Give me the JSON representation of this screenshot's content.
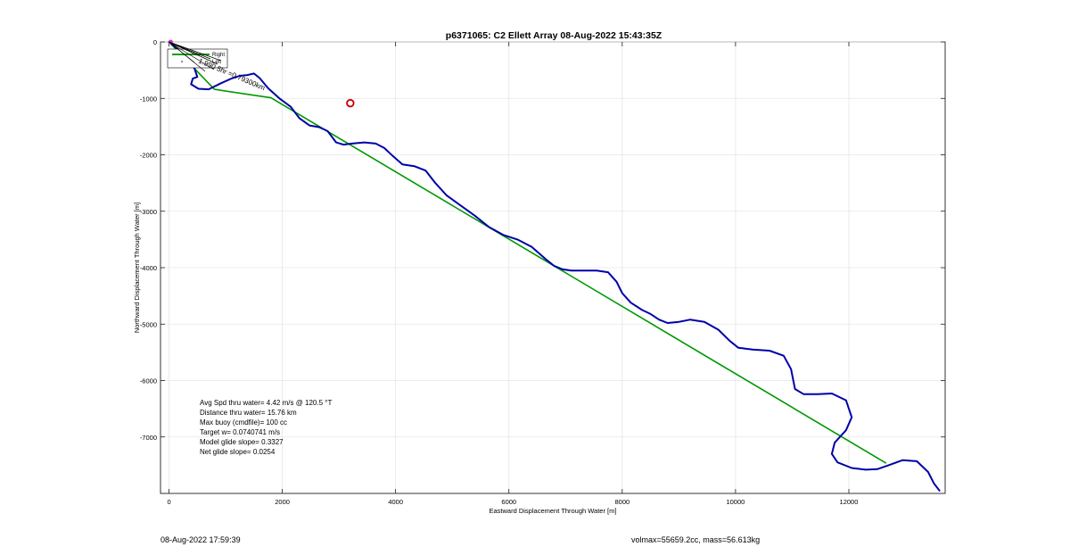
{
  "chart_data": {
    "type": "line",
    "title": "p6371065: C2 Ellett Array 08-Aug-2022 15:43:35Z",
    "xlabel": "Eastward Displacement Through Water [m]",
    "ylabel": "Northward Displacement Through Water [m]",
    "xlim": [
      -150,
      13700
    ],
    "ylim": [
      -8000,
      0
    ],
    "xticks": [
      0,
      2000,
      4000,
      6000,
      8000,
      10000,
      12000
    ],
    "xtick_labels": [
      "0",
      "2000",
      "4000",
      "6000",
      "8000",
      "10000",
      "12000"
    ],
    "yticks": [
      0,
      -1000,
      -2000,
      -3000,
      -4000,
      -5000,
      -6000,
      -7000
    ],
    "ytick_labels": [
      "0",
      "-1000",
      "-2000",
      "-3000",
      "-4000",
      "-5000",
      "-6000",
      "-7000"
    ],
    "grid": true,
    "legend_placement": "top-left",
    "legend": [
      {
        "label": "Right",
        "color": "#00a000",
        "style": "line"
      },
      {
        "label": "Left",
        "color": "#000000",
        "style": "marker"
      }
    ],
    "series": [
      {
        "name": "Right",
        "color": "#009900",
        "x": [
          0,
          800,
          1800,
          12650
        ],
        "y": [
          0,
          -840,
          -990,
          -7460
        ]
      },
      {
        "color": "#0000aa",
        "x": [
          0,
          350,
          450,
          500,
          420,
          390,
          520,
          700,
          900,
          1100,
          1250,
          1370,
          1500,
          1600,
          1750,
          1950,
          2150,
          2300,
          2480,
          2650,
          2800,
          2950,
          3080,
          3230,
          3450,
          3650,
          3800,
          3950,
          4120,
          4330,
          4530,
          4700,
          4900,
          5150,
          5400,
          5650,
          5900,
          6150,
          6400,
          6650,
          6800,
          6950,
          7100,
          7300,
          7550,
          7750,
          7900,
          8000,
          8150,
          8350,
          8500,
          8650,
          8800,
          9000,
          9200,
          9450,
          9700,
          9900,
          10050,
          10300,
          10600,
          10850,
          10980,
          11020,
          11050,
          11200,
          11450,
          11700,
          11950,
          12050,
          11950,
          11750,
          11700,
          11800,
          12050,
          12300,
          12500,
          12700,
          12950,
          13200,
          13400,
          13500,
          13600
        ],
        "y": [
          0,
          -290,
          -470,
          -620,
          -650,
          -750,
          -830,
          -840,
          -740,
          -650,
          -600,
          -590,
          -560,
          -640,
          -820,
          -1000,
          -1150,
          -1350,
          -1480,
          -1510,
          -1580,
          -1780,
          -1820,
          -1800,
          -1780,
          -1800,
          -1880,
          -2020,
          -2170,
          -2200,
          -2280,
          -2500,
          -2720,
          -2900,
          -3080,
          -3280,
          -3420,
          -3500,
          -3630,
          -3850,
          -3970,
          -4030,
          -4050,
          -4050,
          -4050,
          -4080,
          -4250,
          -4450,
          -4620,
          -4750,
          -4820,
          -4920,
          -4980,
          -4960,
          -4920,
          -4960,
          -5100,
          -5300,
          -5420,
          -5450,
          -5470,
          -5560,
          -5800,
          -6000,
          -6150,
          -6240,
          -6240,
          -6230,
          -6350,
          -6650,
          -6880,
          -7100,
          -7300,
          -7450,
          -7550,
          -7580,
          -7570,
          -7500,
          -7410,
          -7430,
          -7620,
          -7820,
          -7950
        ]
      }
    ],
    "marker_point": {
      "x": 3200,
      "y": -1085,
      "color": "#cc0000"
    },
    "start_point": {
      "x": 30,
      "y": 0,
      "color": "#cc33cc"
    },
    "rotated_label": "1.990 5hr =0.79300km",
    "annotations": [
      "Avg Spd thru water=  4.42 m/s @ 120.5 °T",
      "Distance thru water= 15.76 km",
      "Max buoy (cmdfile)= 100 cc",
      "Target w= 0.0740741 m/s",
      "Model glide slope= 0.3327",
      "Net glide slope= 0.0254"
    ]
  },
  "footer": {
    "left": "08-Aug-2022 17:59:39",
    "right": "volmax=55659.2cc, mass=56.613kg"
  }
}
